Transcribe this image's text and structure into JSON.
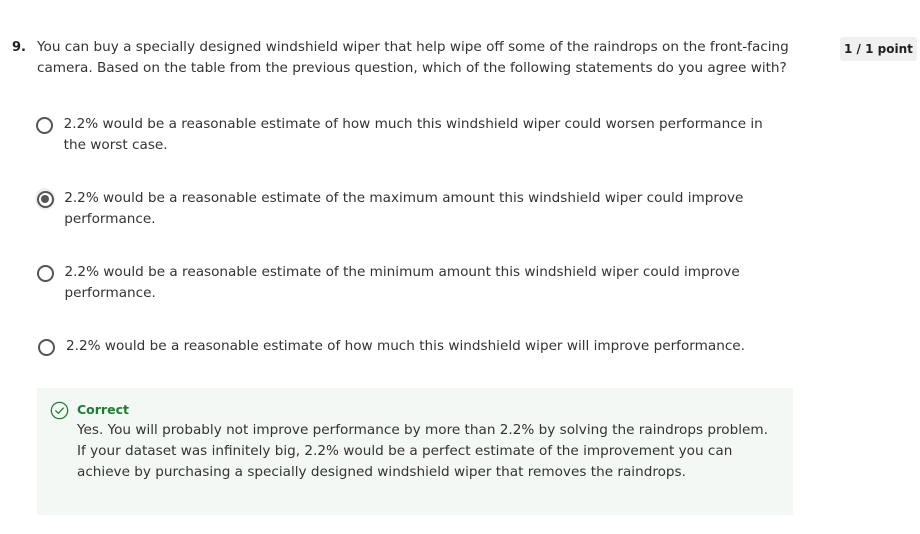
{
  "question": {
    "number": "9.",
    "text": "You can buy a specially designed windshield wiper that help wipe off some of the raindrops on the front-facing camera. Based on the table from the previous question, which of the following statements do you agree with?",
    "points": "1 / 1 point"
  },
  "options": [
    {
      "label": "2.2% would be a reasonable estimate of how much this windshield wiper could worsen performance in the worst case.",
      "selected": false
    },
    {
      "label": "2.2% would be a reasonable estimate of the maximum amount this windshield wiper could improve performance.",
      "selected": true
    },
    {
      "label": "2.2% would be a reasonable estimate of the minimum amount this windshield wiper could improve performance.",
      "selected": false
    },
    {
      "label": "2.2% would be a reasonable estimate of how much this windshield wiper will improve performance.",
      "selected": false
    }
  ],
  "feedback": {
    "status": "Correct",
    "icon": "check-circle-icon",
    "text": "Yes. You will probably not improve performance by more than 2.2% by solving the raindrops problem. If your dataset was infinitely big, 2.2% would be a perfect estimate of the improvement you can achieve by purchasing a specially designed windshield wiper that removes the raindrops."
  },
  "colors": {
    "correct_green": "#1e7b34",
    "feedback_bg": "#f3f8f4",
    "radio": "#555555"
  }
}
